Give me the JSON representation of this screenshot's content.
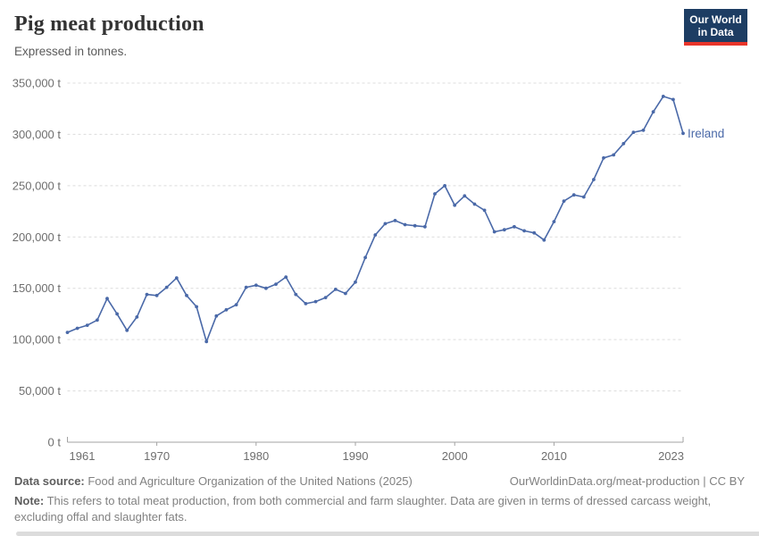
{
  "header": {
    "title": "Pig meat production",
    "subtitle": "Expressed in tonnes.",
    "logo": {
      "line1": "Our World",
      "line2": "in Data"
    }
  },
  "chart_data": {
    "type": "line",
    "title": "Pig meat production",
    "subtitle": "Expressed in tonnes.",
    "unit": "t",
    "grid": "horizontal-dashed",
    "legend_position": "end-of-line-label",
    "ylim": [
      0,
      350000
    ],
    "yticks": [
      0,
      50000,
      100000,
      150000,
      200000,
      250000,
      300000,
      350000
    ],
    "xticks": [
      1961,
      1970,
      1980,
      1990,
      2000,
      2010,
      2023
    ],
    "colors": {
      "series": "#4a69a8",
      "grid": "#dcdcdc",
      "axis": "#a3a3a3",
      "tick_label": "#6e6e6e"
    },
    "series": [
      {
        "name": "Ireland",
        "color": "#4a69a8",
        "x": [
          1961,
          1962,
          1963,
          1964,
          1965,
          1966,
          1967,
          1968,
          1969,
          1970,
          1971,
          1972,
          1973,
          1974,
          1975,
          1976,
          1977,
          1978,
          1979,
          1980,
          1981,
          1982,
          1983,
          1984,
          1985,
          1986,
          1987,
          1988,
          1989,
          1990,
          1991,
          1992,
          1993,
          1994,
          1995,
          1996,
          1997,
          1998,
          1999,
          2000,
          2001,
          2002,
          2003,
          2004,
          2005,
          2006,
          2007,
          2008,
          2009,
          2010,
          2011,
          2012,
          2013,
          2014,
          2015,
          2016,
          2017,
          2018,
          2019,
          2020,
          2021,
          2022,
          2023
        ],
        "values": [
          107000,
          111000,
          114000,
          119000,
          140000,
          125000,
          109000,
          122000,
          144000,
          143000,
          151000,
          160000,
          143000,
          132000,
          98000,
          123000,
          129000,
          134000,
          151000,
          153000,
          150000,
          154000,
          161000,
          144000,
          135000,
          137000,
          141000,
          149000,
          145000,
          156000,
          180000,
          202000,
          213000,
          216000,
          212000,
          211000,
          210000,
          242000,
          250000,
          231000,
          240000,
          232000,
          226000,
          205000,
          207000,
          210000,
          206000,
          204000,
          197000,
          215000,
          235000,
          241000,
          239000,
          256000,
          277000,
          280000,
          291000,
          302000,
          304000,
          322000,
          337000,
          334000,
          301000
        ]
      }
    ]
  },
  "footer": {
    "datasource_label": "Data source:",
    "datasource_text": " Food and Agriculture Organization of the United Nations (2025)",
    "link": "OurWorldinData.org/meat-production | CC BY",
    "note_label": "Note:",
    "note_text": " This refers to total meat production, from both commercial and farm slaughter. Data are given in terms of dressed carcass weight, excluding offal and slaughter fats."
  }
}
